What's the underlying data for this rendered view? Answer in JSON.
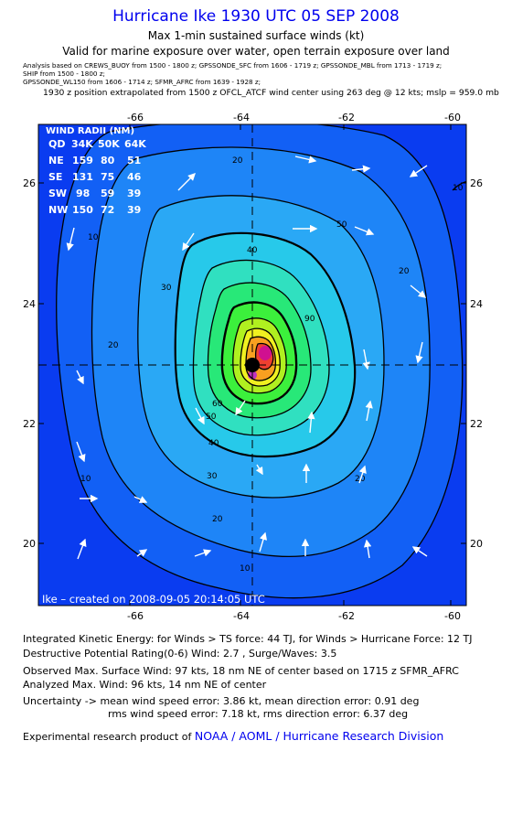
{
  "header": {
    "title": "Hurricane Ike 1930 UTC 05 SEP 2008",
    "subtitle": "Max 1-min sustained surface winds (kt)",
    "validity": "Valid for marine exposure over water, open terrain exposure over land",
    "analysis_line1": "Analysis based on   CREWS_BUOY from 1500 - 1800 z;   GPSSONDE_SFC from 1606 - 1719 z;   GPSSONDE_MBL from 1713 - 1719 z;",
    "analysis_line2": "SHIP from 1500 - 1800 z;",
    "analysis_line3": "GPSSONDE_WL150 from 1606 - 1714 z;   SFMR_AFRC from 1639 - 1928 z;",
    "position_note": "1930 z position extrapolated from 1500 z OFCL_ATCF wind center using 263 deg @ 12 kts; mslp = 959.0 mb"
  },
  "map": {
    "x_ticks": [
      "-66",
      "-64",
      "-62",
      "-60"
    ],
    "y_ticks": [
      "26",
      "24",
      "22",
      "20"
    ],
    "x_range": [
      -67.0,
      -59.5
    ],
    "y_range": [
      19.0,
      27.0
    ],
    "center": {
      "lon": -63.6,
      "lat": 23.0
    },
    "created": "Ike – created on 2008-09-05 20:14:05 UTC",
    "contour_labels": [
      "10",
      "20",
      "30",
      "40",
      "50",
      "60",
      "90"
    ],
    "colors": {
      "background": "#0a3cf0",
      "outer_contour": "#000000"
    }
  },
  "wind_radii": {
    "title": "WIND RADII (NM)",
    "header": [
      "QD",
      "34K",
      "50K",
      "64K"
    ],
    "rows": [
      [
        "NE",
        "159",
        "80",
        "51"
      ],
      [
        "SE",
        "131",
        "75",
        "46"
      ],
      [
        "SW",
        "98",
        "59",
        "39"
      ],
      [
        "NW",
        "150",
        "72",
        "39"
      ]
    ]
  },
  "stats": {
    "ike": "Integrated Kinetic Energy:  for Winds > TS force: 44 TJ,  for Winds > Hurricane Force: 12 TJ",
    "destructive": "Destructive Potential Rating(0-6)   Wind: 2.7 , Surge/Waves: 3.5",
    "observed": "Observed Max. Surface Wind: 97 kts, 18 nm NE of center based on 1715 z SFMR_AFRC",
    "analyzed": "Analyzed Max. Wind: 96 kts, 14 nm NE of center",
    "uncertainty1": "Uncertainty -> mean wind speed error: 3.86 kt,   mean direction error: 0.91 deg",
    "uncertainty2": "rms wind speed error: 7.18 kt,   rms direction error: 6.37 deg",
    "footer_prefix": "Experimental research product of ",
    "footer_link": "NOAA / AOML / Hurricane Research Division"
  }
}
